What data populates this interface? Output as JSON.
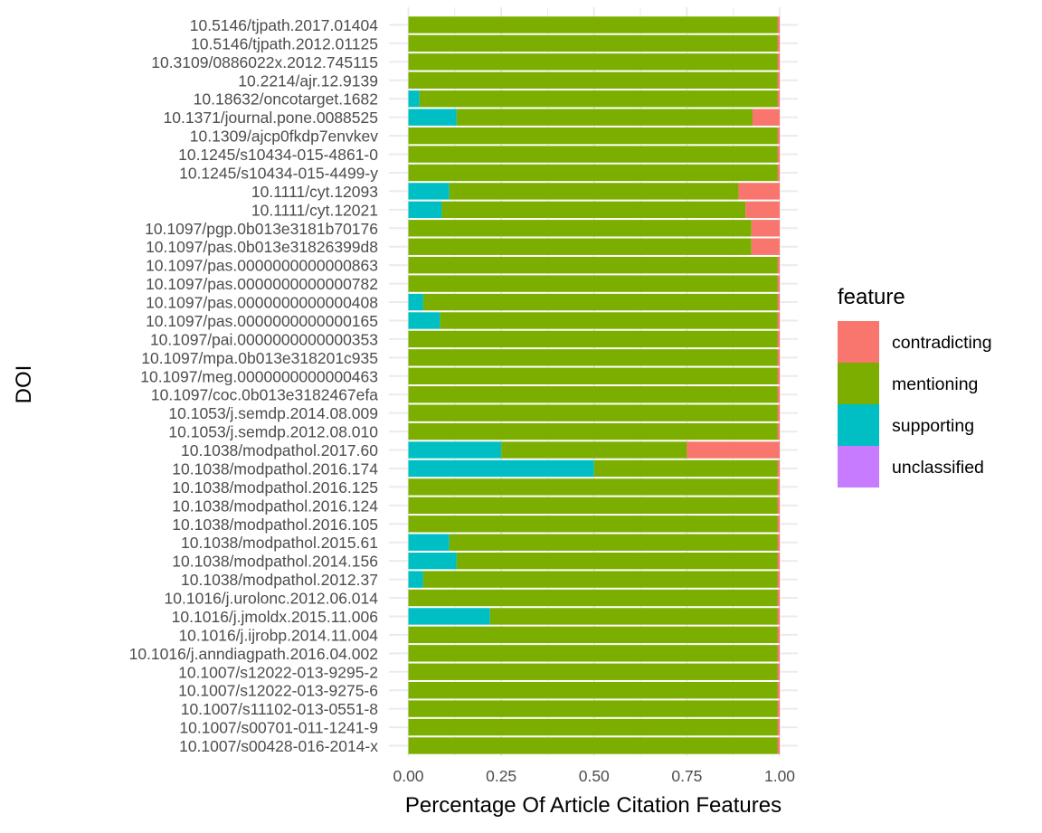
{
  "chart_data": {
    "type": "bar",
    "orientation": "horizontal",
    "stacked": true,
    "xlabel": "Percentage Of Article Citation Features",
    "ylabel": "DOI",
    "xlim": [
      0,
      1
    ],
    "x_ticks": [
      "0.00",
      "0.25",
      "0.50",
      "0.75",
      "1.00"
    ],
    "grid": true,
    "legend": {
      "title": "feature",
      "placement": "right",
      "entries": [
        "contradicting",
        "mentioning",
        "supporting",
        "unclassified"
      ]
    },
    "colors": {
      "contradicting": "#F8766D",
      "mentioning": "#7CAE00",
      "supporting": "#00BFC4",
      "unclassified": "#C77CFF"
    },
    "series_order": [
      "supporting",
      "mentioning",
      "contradicting",
      "unclassified"
    ],
    "categories": [
      "10.5146/tjpath.2017.01404",
      "10.5146/tjpath.2012.01125",
      "10.3109/0886022x.2012.745115",
      "10.2214/ajr.12.9139",
      "10.18632/oncotarget.1682",
      "10.1371/journal.pone.0088525",
      "10.1309/ajcp0fkdp7envkev",
      "10.1245/s10434-015-4861-0",
      "10.1245/s10434-015-4499-y",
      "10.1111/cyt.12093",
      "10.1111/cyt.12021",
      "10.1097/pgp.0b013e3181b70176",
      "10.1097/pas.0b013e31826399d8",
      "10.1097/pas.0000000000000863",
      "10.1097/pas.0000000000000782",
      "10.1097/pas.0000000000000408",
      "10.1097/pas.0000000000000165",
      "10.1097/pai.0000000000000353",
      "10.1097/mpa.0b013e318201c935",
      "10.1097/meg.0000000000000463",
      "10.1097/coc.0b013e3182467efa",
      "10.1053/j.semdp.2014.08.009",
      "10.1053/j.semdp.2012.08.010",
      "10.1038/modpathol.2017.60",
      "10.1038/modpathol.2016.174",
      "10.1038/modpathol.2016.125",
      "10.1038/modpathol.2016.124",
      "10.1038/modpathol.2016.105",
      "10.1038/modpathol.2015.61",
      "10.1038/modpathol.2014.156",
      "10.1038/modpathol.2012.37",
      "10.1016/j.urolonc.2012.06.014",
      "10.1016/j.jmoldx.2015.11.006",
      "10.1016/j.ijrobp.2014.11.004",
      "10.1016/j.anndiagpath.2016.04.002",
      "10.1007/s12022-013-9295-2",
      "10.1007/s12022-013-9275-6",
      "10.1007/s11102-013-0551-8",
      "10.1007/s00701-011-1241-9",
      "10.1007/s00428-016-2014-x"
    ],
    "series": [
      {
        "name": "supporting",
        "values": [
          0,
          0,
          0,
          0,
          0.03,
          0.13,
          0,
          0,
          0,
          0.11,
          0.09,
          0,
          0,
          0,
          0,
          0.04,
          0.085,
          0,
          0,
          0,
          0,
          0,
          0,
          0.25,
          0.5,
          0,
          0,
          0,
          0.11,
          0.13,
          0.04,
          0,
          0.22,
          0,
          0,
          0,
          0,
          0,
          0,
          0
        ]
      },
      {
        "name": "mentioning",
        "values": [
          0.994,
          0.994,
          0.994,
          0.994,
          0.964,
          0.797,
          0.994,
          0.994,
          0.994,
          0.779,
          0.818,
          0.924,
          0.924,
          0.994,
          0.994,
          0.954,
          0.909,
          0.994,
          0.994,
          0.994,
          0.994,
          0.994,
          0.994,
          0.5,
          0.494,
          0.994,
          0.994,
          0.994,
          0.884,
          0.864,
          0.954,
          0.994,
          0.774,
          0.994,
          0.994,
          0.994,
          0.994,
          0.994,
          0.994,
          0.994
        ]
      },
      {
        "name": "contradicting",
        "values": [
          0.006,
          0.006,
          0.006,
          0.006,
          0.006,
          0.073,
          0.006,
          0.006,
          0.006,
          0.111,
          0.092,
          0.076,
          0.076,
          0.006,
          0.006,
          0.006,
          0.006,
          0.006,
          0.006,
          0.006,
          0.006,
          0.006,
          0.006,
          0.25,
          0.006,
          0.006,
          0.006,
          0.006,
          0.006,
          0.006,
          0.006,
          0.006,
          0.006,
          0.006,
          0.006,
          0.006,
          0.006,
          0.006,
          0.006,
          0.006
        ]
      },
      {
        "name": "unclassified",
        "values": [
          0,
          0,
          0,
          0,
          0,
          0,
          0,
          0,
          0,
          0,
          0,
          0,
          0,
          0,
          0,
          0,
          0,
          0,
          0,
          0,
          0,
          0,
          0,
          0,
          0,
          0,
          0,
          0,
          0,
          0,
          0,
          0,
          0,
          0,
          0,
          0,
          0,
          0,
          0,
          0
        ]
      }
    ]
  }
}
